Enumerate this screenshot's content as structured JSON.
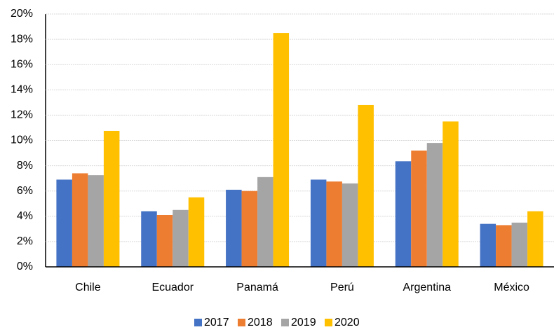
{
  "chart_data": {
    "type": "bar",
    "categories": [
      "Chile",
      "Ecuador",
      "Panamá",
      "Perú",
      "Argentina",
      "México"
    ],
    "series": [
      {
        "name": "2017",
        "color": "#4472c4",
        "values": [
          6.9,
          4.4,
          6.1,
          6.9,
          8.35,
          3.4
        ]
      },
      {
        "name": "2018",
        "color": "#ed7d31",
        "values": [
          7.4,
          4.1,
          6.0,
          6.75,
          9.2,
          3.3
        ]
      },
      {
        "name": "2019",
        "color": "#a5a5a5",
        "values": [
          7.25,
          4.5,
          7.1,
          6.6,
          9.8,
          3.5
        ]
      },
      {
        "name": "2020",
        "color": "#ffc000",
        "values": [
          10.75,
          5.5,
          18.5,
          12.8,
          11.5,
          4.4
        ]
      }
    ],
    "ylim": [
      0,
      20
    ],
    "yticks": [
      {
        "value": 0,
        "label": "0%"
      },
      {
        "value": 2,
        "label": "2%"
      },
      {
        "value": 4,
        "label": "4%"
      },
      {
        "value": 6,
        "label": "6%"
      },
      {
        "value": 8,
        "label": "8%"
      },
      {
        "value": 10,
        "label": "10%"
      },
      {
        "value": 12,
        "label": "12%"
      },
      {
        "value": 14,
        "label": "14%"
      },
      {
        "value": 16,
        "label": "16%"
      },
      {
        "value": 18,
        "label": "18%"
      },
      {
        "value": 20,
        "label": "20%"
      }
    ],
    "grid": true,
    "legend": "bottom"
  }
}
